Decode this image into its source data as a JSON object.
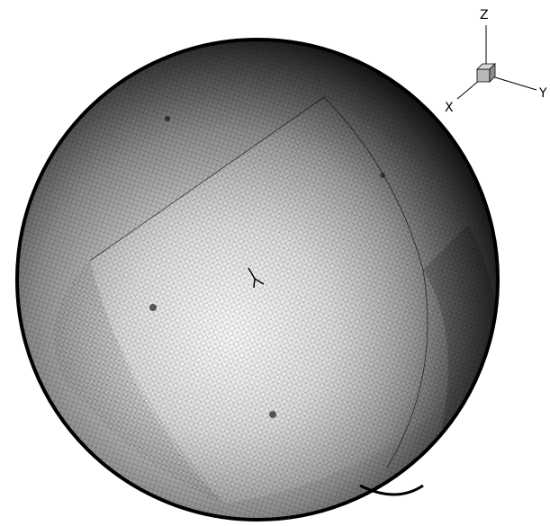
{
  "axes_triad": {
    "z_label": "Z",
    "y_label": "Y",
    "x_label": "X",
    "cube_color": "#b8b8b8",
    "line_color": "#000000"
  },
  "mesh_sphere": {
    "rim_color": "#000000",
    "light_color": "#f2f2f2",
    "dark_color": "#1a1a1a",
    "grid_color": "#000000"
  }
}
